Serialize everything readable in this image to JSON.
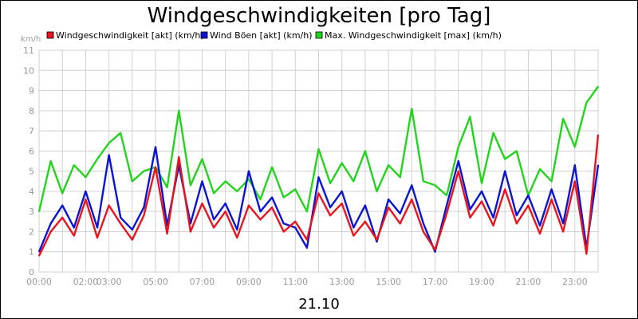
{
  "chart_data": {
    "type": "line",
    "title": "Windgeschwindigkeiten [pro Tag]",
    "ylabel": "km/h",
    "ylim": [
      0,
      11
    ],
    "yticks": [
      0,
      1,
      2,
      3,
      4,
      5,
      6,
      7,
      8,
      9,
      10,
      11
    ],
    "xlim": [
      0,
      24
    ],
    "xtick_labels": [
      "00:00",
      "02:00",
      "03:00",
      "05:00",
      "07:00",
      "09:00",
      "11:00",
      "13:00",
      "15:00",
      "17:00",
      "19:00",
      "21:00",
      "23:00"
    ],
    "xtick_hours": [
      0,
      2,
      3,
      5,
      7,
      9,
      11,
      13,
      15,
      17,
      19,
      21,
      23
    ],
    "xlabel": "21.10",
    "grid": true,
    "legend_position": "top",
    "series": [
      {
        "name": "Windgeschwindigkeit [akt] (km/h)",
        "color": "#e8141e",
        "x": [
          0,
          0.5,
          1,
          1.5,
          2,
          2.5,
          3,
          3.5,
          4,
          4.5,
          5,
          5.5,
          6,
          6.5,
          7,
          7.5,
          8,
          8.5,
          9,
          9.5,
          10,
          10.5,
          11,
          11.5,
          12,
          12.5,
          13,
          13.5,
          14,
          14.5,
          15,
          15.5,
          16,
          16.5,
          17,
          17.5,
          18,
          18.5,
          19,
          19.5,
          20,
          20.5,
          21,
          21.5,
          22,
          22.5,
          23,
          23.5,
          24
        ],
        "values": [
          0.8,
          2.0,
          2.7,
          1.8,
          3.6,
          1.7,
          3.3,
          2.4,
          1.6,
          2.8,
          5.2,
          1.9,
          5.7,
          2.0,
          3.4,
          2.2,
          3.0,
          1.7,
          3.3,
          2.6,
          3.2,
          2.0,
          2.5,
          1.6,
          3.9,
          2.8,
          3.4,
          1.8,
          2.5,
          1.6,
          3.2,
          2.4,
          3.6,
          2.0,
          1.1,
          2.9,
          5.0,
          2.7,
          3.5,
          2.3,
          4.1,
          2.4,
          3.3,
          1.9,
          3.6,
          2.0,
          4.5,
          0.9,
          6.8
        ]
      },
      {
        "name": "Wind Böen [akt] (km/h)",
        "color": "#0a14d2",
        "x": [
          0,
          0.5,
          1,
          1.5,
          2,
          2.5,
          3,
          3.5,
          4,
          4.5,
          5,
          5.5,
          6,
          6.5,
          7,
          7.5,
          8,
          8.5,
          9,
          9.5,
          10,
          10.5,
          11,
          11.5,
          12,
          12.5,
          13,
          13.5,
          14,
          14.5,
          15,
          15.5,
          16,
          16.5,
          17,
          17.5,
          18,
          18.5,
          19,
          19.5,
          20,
          20.5,
          21,
          21.5,
          22,
          22.5,
          23,
          23.5,
          24
        ],
        "values": [
          1.0,
          2.4,
          3.3,
          2.2,
          4.0,
          2.2,
          5.8,
          2.7,
          2.1,
          3.2,
          6.2,
          2.3,
          5.3,
          2.4,
          4.5,
          2.6,
          3.4,
          2.1,
          5.0,
          3.0,
          3.7,
          2.4,
          2.2,
          1.2,
          4.7,
          3.2,
          4.0,
          2.2,
          3.3,
          1.5,
          3.6,
          2.9,
          4.3,
          2.4,
          1.0,
          3.3,
          5.5,
          3.1,
          4.0,
          2.7,
          5.0,
          2.8,
          3.8,
          2.3,
          4.1,
          2.4,
          5.3,
          1.2,
          5.3
        ]
      },
      {
        "name": "Max. Windgeschwindigkeit [max] (km/h)",
        "color": "#22d41c",
        "x": [
          0,
          0.5,
          1,
          1.5,
          2,
          2.5,
          3,
          3.5,
          4,
          4.5,
          5,
          5.5,
          6,
          6.5,
          7,
          7.5,
          8,
          8.5,
          9,
          9.5,
          10,
          10.5,
          11,
          11.5,
          12,
          12.5,
          13,
          13.5,
          14,
          14.5,
          15,
          15.5,
          16,
          16.5,
          17,
          17.5,
          18,
          18.5,
          19,
          19.5,
          20,
          20.5,
          21,
          21.5,
          22,
          22.5,
          23,
          23.5,
          24
        ],
        "values": [
          3.0,
          5.5,
          3.9,
          5.3,
          4.7,
          5.6,
          6.4,
          6.9,
          4.5,
          5.0,
          5.2,
          4.2,
          8.0,
          4.3,
          5.6,
          3.9,
          4.5,
          4.0,
          4.6,
          3.6,
          5.2,
          3.7,
          4.1,
          3.0,
          6.1,
          4.4,
          5.4,
          4.5,
          6.0,
          4.0,
          5.3,
          4.7,
          8.1,
          4.5,
          4.3,
          3.8,
          6.2,
          7.7,
          4.4,
          6.9,
          5.6,
          6.0,
          3.8,
          5.1,
          4.5,
          7.6,
          6.2,
          8.4,
          9.2
        ]
      }
    ]
  }
}
